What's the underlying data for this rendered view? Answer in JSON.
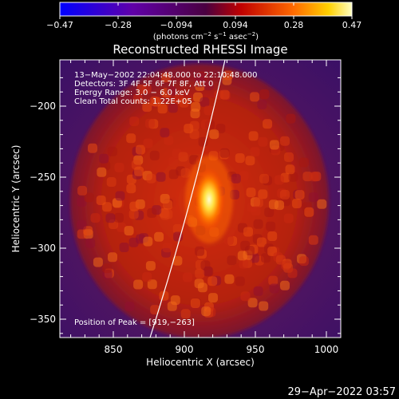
{
  "colorbar": {
    "ticks": [
      "−0.47",
      "−0.28",
      "−0.094",
      "0.094",
      "0.28",
      "0.47"
    ],
    "units_main": "(photons cm",
    "units_exp1": "−2",
    "units_s": " s",
    "units_exp2": "−1",
    "units_asec": " asec",
    "units_exp3": "−2",
    "units_close": ")"
  },
  "plot": {
    "title": "Reconstructed RHESSI Image",
    "xlabel": "Heliocentric X (arcsec)",
    "ylabel": "Heliocentric Y (arcsec)",
    "xticks": [
      "850",
      "900",
      "950",
      "1000"
    ],
    "yticks": [
      "−200",
      "−250",
      "−300",
      "−350"
    ],
    "info_lines": [
      "13−May−2002 22:04:48.000 to 22:10:48.000",
      "Detectors: 3F 4F 5F 6F 7F 8F, Att 0",
      "Energy Range: 3.0 − 6.0 keV",
      "Clean     Total counts: 1.22E+05"
    ],
    "peak_label": "Position of Peak = [919,−263]"
  },
  "footer": {
    "timestamp": "29−Apr−2022 03:57"
  },
  "colors": {
    "background": "#000000",
    "text": "#ffffff"
  }
}
